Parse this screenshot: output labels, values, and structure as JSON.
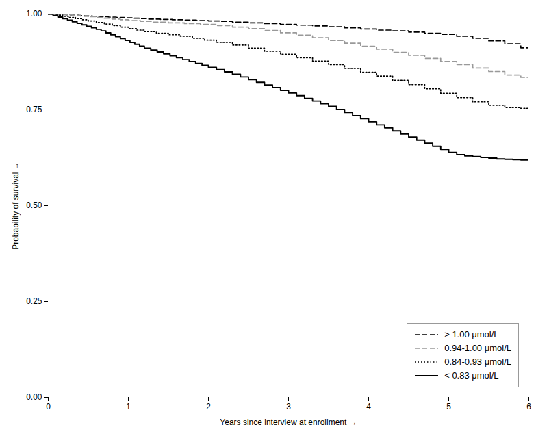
{
  "chart_data": {
    "type": "line",
    "xlabel": "Years since interview at enrollment",
    "ylabel": "Probability of survival",
    "xlim": [
      0,
      6
    ],
    "ylim": [
      0.0,
      1.0
    ],
    "xticks": [
      0,
      1,
      2,
      3,
      4,
      5,
      6
    ],
    "yticks": [
      {
        "value": 0.0,
        "label": "0.00"
      },
      {
        "value": 0.25,
        "label": "0.25"
      },
      {
        "value": 0.5,
        "label": "0.50"
      },
      {
        "value": 0.75,
        "label": "0.75"
      },
      {
        "value": 1.0,
        "label": "1.00"
      }
    ],
    "grid": false,
    "legend": "lower right",
    "series": [
      {
        "name": "> 1.00 μmol/L",
        "color": "#000000",
        "line_style": "dashed",
        "x": [
          0,
          0.15,
          0.22,
          0.3,
          0.38,
          0.45,
          0.55,
          0.65,
          0.75,
          0.85,
          0.95,
          1.05,
          1.15,
          1.25,
          1.4,
          1.55,
          1.7,
          1.85,
          2.0,
          2.15,
          2.3,
          2.5,
          2.7,
          2.9,
          3.1,
          3.3,
          3.5,
          3.7,
          3.9,
          4.1,
          4.3,
          4.5,
          4.7,
          4.9,
          5.1,
          5.3,
          5.5,
          5.7,
          5.9,
          6.0
        ],
        "values": [
          1.0,
          1.0,
          0.998,
          0.997,
          0.996,
          0.995,
          0.994,
          0.993,
          0.992,
          0.991,
          0.99,
          0.989,
          0.988,
          0.987,
          0.986,
          0.985,
          0.984,
          0.983,
          0.982,
          0.981,
          0.979,
          0.977,
          0.975,
          0.973,
          0.971,
          0.969,
          0.967,
          0.964,
          0.961,
          0.958,
          0.956,
          0.953,
          0.95,
          0.947,
          0.942,
          0.937,
          0.93,
          0.922,
          0.912,
          0.888
        ]
      },
      {
        "name": "0.94-1.00 μmol/L",
        "color": "#999999",
        "line_style": "dashed",
        "x": [
          0,
          0.12,
          0.2,
          0.3,
          0.4,
          0.5,
          0.6,
          0.7,
          0.8,
          0.9,
          1.0,
          1.15,
          1.3,
          1.5,
          1.7,
          1.9,
          2.1,
          2.3,
          2.5,
          2.7,
          2.9,
          3.1,
          3.3,
          3.5,
          3.7,
          3.9,
          4.1,
          4.3,
          4.5,
          4.7,
          4.9,
          5.1,
          5.3,
          5.5,
          5.7,
          5.9,
          6.0
        ],
        "values": [
          1.0,
          0.999,
          0.998,
          0.997,
          0.995,
          0.993,
          0.991,
          0.989,
          0.987,
          0.985,
          0.983,
          0.981,
          0.979,
          0.977,
          0.975,
          0.973,
          0.97,
          0.966,
          0.962,
          0.957,
          0.951,
          0.945,
          0.938,
          0.931,
          0.924,
          0.916,
          0.908,
          0.9,
          0.892,
          0.884,
          0.876,
          0.868,
          0.859,
          0.85,
          0.841,
          0.835,
          0.83
        ]
      },
      {
        "name": "0.84-0.93 μmol/L",
        "color": "#000000",
        "line_style": "dotted",
        "x": [
          0,
          0.1,
          0.18,
          0.26,
          0.34,
          0.42,
          0.5,
          0.6,
          0.7,
          0.8,
          0.9,
          1.0,
          1.1,
          1.2,
          1.35,
          1.5,
          1.65,
          1.8,
          1.95,
          2.1,
          2.3,
          2.5,
          2.7,
          2.9,
          3.1,
          3.3,
          3.5,
          3.7,
          3.9,
          4.1,
          4.3,
          4.5,
          4.7,
          4.9,
          5.1,
          5.3,
          5.5,
          5.7,
          5.9,
          6.0
        ],
        "values": [
          1.0,
          0.997,
          0.994,
          0.991,
          0.988,
          0.985,
          0.982,
          0.978,
          0.974,
          0.97,
          0.966,
          0.962,
          0.958,
          0.954,
          0.95,
          0.946,
          0.942,
          0.937,
          0.932,
          0.926,
          0.919,
          0.911,
          0.903,
          0.895,
          0.886,
          0.877,
          0.868,
          0.858,
          0.848,
          0.838,
          0.827,
          0.816,
          0.805,
          0.793,
          0.782,
          0.771,
          0.762,
          0.756,
          0.754,
          0.753
        ]
      },
      {
        "name": "< 0.83 μmol/L",
        "color": "#000000",
        "line_style": "solid",
        "x": [
          0,
          0.06,
          0.12,
          0.18,
          0.24,
          0.3,
          0.36,
          0.42,
          0.48,
          0.54,
          0.6,
          0.66,
          0.72,
          0.78,
          0.84,
          0.9,
          0.96,
          1.02,
          1.08,
          1.14,
          1.2,
          1.28,
          1.36,
          1.44,
          1.52,
          1.6,
          1.68,
          1.76,
          1.84,
          1.92,
          2.0,
          2.1,
          2.2,
          2.3,
          2.4,
          2.5,
          2.6,
          2.7,
          2.8,
          2.9,
          3.0,
          3.1,
          3.2,
          3.3,
          3.4,
          3.5,
          3.6,
          3.7,
          3.8,
          3.9,
          4.0,
          4.1,
          4.2,
          4.3,
          4.4,
          4.5,
          4.6,
          4.7,
          4.8,
          4.9,
          5.0,
          5.1,
          5.2,
          5.3,
          5.4,
          5.5,
          5.6,
          5.7,
          5.8,
          5.9,
          6.0
        ],
        "values": [
          1.0,
          0.996,
          0.992,
          0.988,
          0.984,
          0.98,
          0.976,
          0.972,
          0.968,
          0.964,
          0.96,
          0.956,
          0.951,
          0.946,
          0.941,
          0.936,
          0.931,
          0.926,
          0.921,
          0.916,
          0.911,
          0.906,
          0.901,
          0.896,
          0.891,
          0.886,
          0.881,
          0.876,
          0.871,
          0.866,
          0.861,
          0.855,
          0.849,
          0.843,
          0.836,
          0.829,
          0.822,
          0.815,
          0.808,
          0.801,
          0.794,
          0.787,
          0.78,
          0.773,
          0.766,
          0.759,
          0.751,
          0.743,
          0.735,
          0.727,
          0.719,
          0.711,
          0.703,
          0.695,
          0.687,
          0.679,
          0.671,
          0.663,
          0.655,
          0.647,
          0.639,
          0.633,
          0.63,
          0.628,
          0.626,
          0.624,
          0.622,
          0.621,
          0.62,
          0.619,
          0.625
        ]
      }
    ]
  }
}
